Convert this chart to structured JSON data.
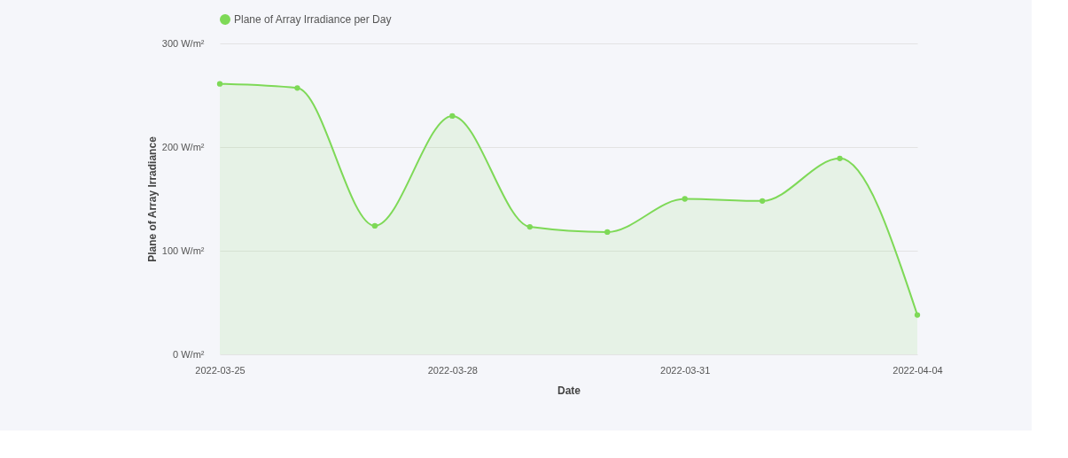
{
  "chart_data": {
    "type": "area",
    "xlabel": "Date",
    "ylabel": "Plane of Array Irradiance",
    "categories": [
      "2022-03-25",
      null,
      null,
      "2022-03-28",
      null,
      null,
      "2022-03-31",
      null,
      null,
      "2022-04-04"
    ],
    "series": [
      {
        "name": "Plane of Array Irradiance per Day",
        "color": "#7ed957",
        "values": [
          261,
          257,
          124,
          230,
          123,
          118,
          150,
          148,
          189,
          38
        ]
      }
    ],
    "ylim": [
      0,
      300
    ],
    "yticks": [
      {
        "value": 0,
        "label": "0 W/m²"
      },
      {
        "value": 100,
        "label": "100 W/m²"
      },
      {
        "value": 200,
        "label": "200 W/m²"
      },
      {
        "value": 300,
        "label": "300 W/m²"
      }
    ],
    "grid": "y",
    "legend": "top",
    "marker": "circle"
  }
}
